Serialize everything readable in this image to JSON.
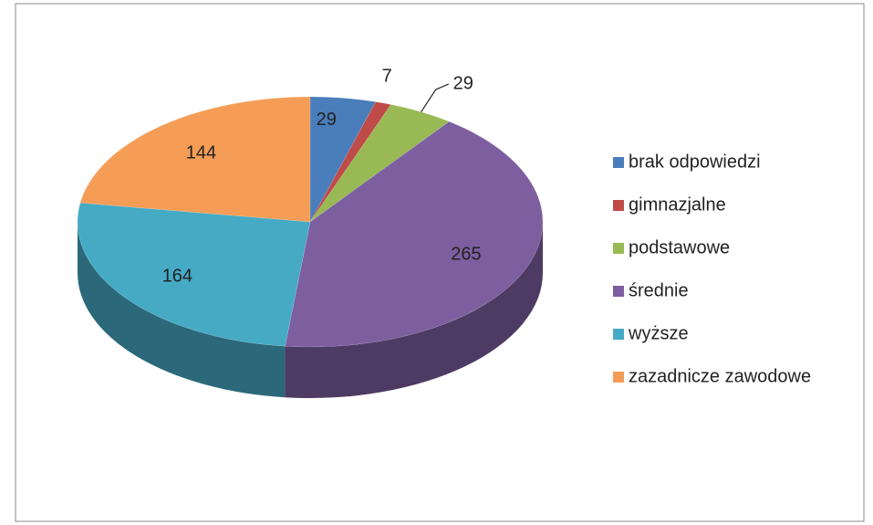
{
  "chart_data": {
    "type": "pie3d",
    "categories": [
      "brak odpowiedzi",
      "gimnazjalne",
      "podstawowe",
      "średnie",
      "wyższe",
      "zazadnicze zawodowe"
    ],
    "values": [
      29,
      7,
      29,
      265,
      164,
      144
    ],
    "colors": [
      "#4a7ebb",
      "#be4b48",
      "#98b954",
      "#7d5fa0",
      "#46aac5",
      "#f59d56"
    ],
    "legend": "right"
  }
}
